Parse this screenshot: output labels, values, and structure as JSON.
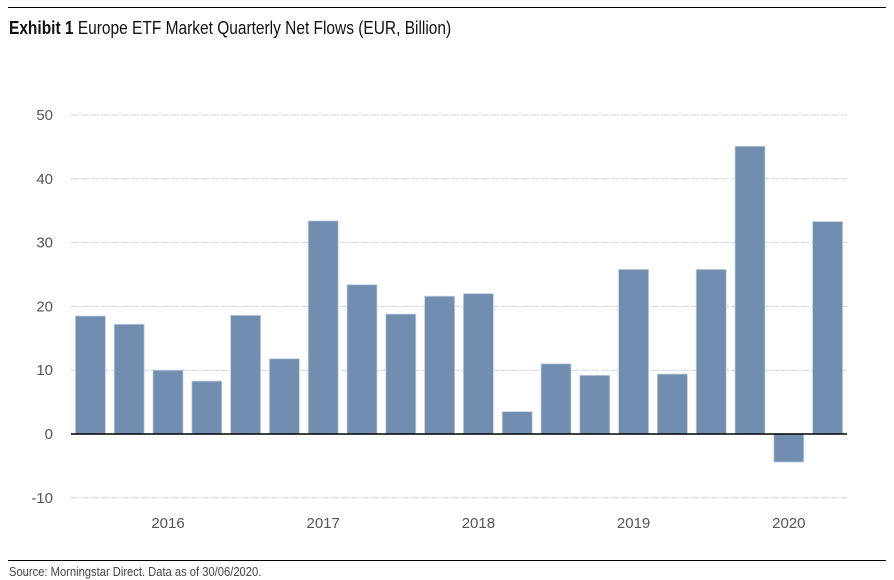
{
  "chart_data": {
    "type": "bar",
    "title_prefix": "Exhibit 1",
    "title": "Europe ETF Market Quarterly Net Flows (EUR, Billion)",
    "xlabel": "",
    "ylabel": "",
    "ylim": [
      -10,
      50
    ],
    "yticks": [
      "50",
      "40",
      "30",
      "20",
      "10",
      "0",
      "-10"
    ],
    "ytick_values": [
      50,
      40,
      30,
      20,
      10,
      0,
      -10
    ],
    "grid": true,
    "bar_color": "#718eb1",
    "categories": [
      "Q1 2016",
      "Q2 2016",
      "Q3 2016",
      "Q4 2016",
      "Q1 2017",
      "Q2 2017",
      "Q3 2017",
      "Q4 2017",
      "Q1 2018",
      "Q2 2018",
      "Q3 2018",
      "Q4 2018",
      "Q1 2019",
      "Q2 2019",
      "Q3 2019",
      "Q4 2019",
      "Q1 2020",
      "Q2 2020",
      "Q3 2020",
      "Q4 2020"
    ],
    "values": [
      18.5,
      17.2,
      10.0,
      8.3,
      18.6,
      11.8,
      33.4,
      23.4,
      18.8,
      21.6,
      22.0,
      3.5,
      11.0,
      9.2,
      25.8,
      9.4,
      25.8,
      45.1,
      -4.4,
      33.3
    ],
    "x_tick_labels": [
      "2016",
      "2017",
      "2018",
      "2019",
      "2020"
    ],
    "x_tick_bar_index": [
      2.5,
      6.5,
      10.5,
      14.5,
      18.5
    ]
  },
  "footer": {
    "source": "Source: Morningstar Direct. Data as of 30/06/2020."
  }
}
